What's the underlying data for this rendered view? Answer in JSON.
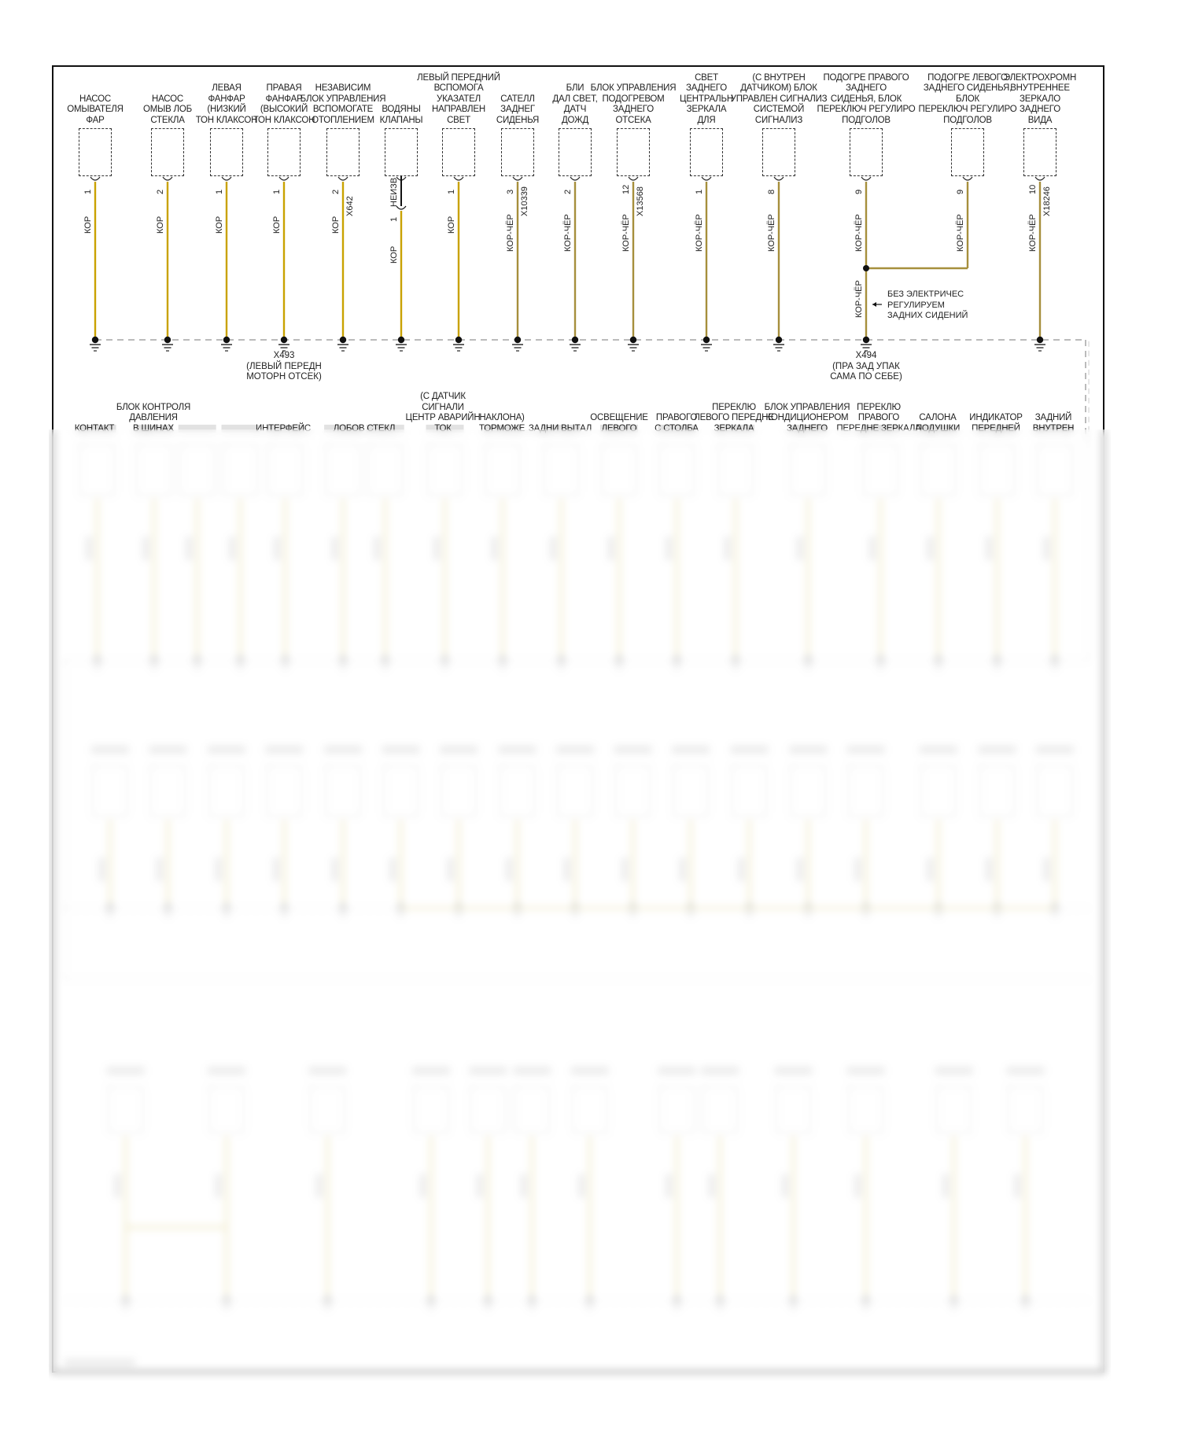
{
  "colors": {
    "kor": "#c9a200",
    "kor_cher": "#a68f3c",
    "frame": "#111111",
    "faded_wire": "#e6dca4"
  },
  "top": {
    "components": [
      {
        "label": [
          "НАСОС",
          "ОМЫВАТЕЛЯ",
          "ФАР"
        ],
        "pin": "1",
        "wire": "КОР",
        "connector": ""
      },
      {
        "label": [
          "НАСОС",
          "ОМЫВ ЛОБ",
          "СТЕКЛА"
        ],
        "pin": "2",
        "wire": "КОР",
        "connector": ""
      },
      {
        "label": [
          "ЛЕВАЯ",
          "ФАНФАР",
          "(НИЗКИЙ",
          "ТОН КЛАКСОН"
        ],
        "pin": "1",
        "wire": "КОР",
        "connector": ""
      },
      {
        "label": [
          "ПРАВАЯ",
          "ФАНФАР",
          "(ВЫСОКИЙ",
          "ТОН КЛАКСОН"
        ],
        "pin": "1",
        "wire": "КОР",
        "connector": ""
      },
      {
        "label": [
          "НЕЗАВИСИМ",
          "БЛОК УПРАВЛЕНИЯ",
          "ВСПОМОГАТЕ",
          "ОТОПЛЕНИЕМ"
        ],
        "pin": "2",
        "wire": "КОР",
        "connector": "X642"
      },
      {
        "label": [
          "ВОДЯНЫ",
          "КЛАПАНЫ"
        ],
        "pin": "1",
        "wire": "КОР",
        "connector": "",
        "unknown": "НЕИЗВ"
      },
      {
        "label": [
          "ЛЕВЫЙ ПЕРЕДНИЙ",
          "ВСПОМОГА",
          "УКАЗАТЕЛ",
          "НАПРАВЛЕН",
          "СВЕТ"
        ],
        "pin": "1",
        "wire": "КОР",
        "connector": ""
      },
      {
        "label": [
          "САТЕЛЛ",
          "ЗАДНЕГ",
          "СИДЕНЬЯ"
        ],
        "pin": "3",
        "wire": "КОР-ЧЁР",
        "connector": "X10339"
      },
      {
        "label": [
          "БЛИ",
          "ДАЛ СВЕТ,",
          "ДАТЧ",
          "ДОЖД"
        ],
        "pin": "2",
        "wire": "КОР-ЧЁР",
        "connector": ""
      },
      {
        "label": [
          "БЛОК УПРАВЛЕНИЯ",
          "ПОДОГРЕВОМ",
          "ЗАДНЕГО",
          "ОТСЕКА"
        ],
        "pin": "12",
        "wire": "КОР-ЧЁР",
        "connector": "X13568"
      },
      {
        "label": [
          "СВЕТ",
          "ЗАДНЕГО",
          "ЦЕНТРАЛЬН",
          "ЗЕРКАЛА",
          "ДЛЯ"
        ],
        "pin": "1",
        "wire": "КОР-ЧЁР",
        "connector": ""
      },
      {
        "label": [
          "(С ВНУТРЕН",
          "ДАТЧИКОМ) БЛОК",
          "УПРАВЛЕН СИГНАЛИЗ",
          "СИСТЕМОЙ",
          "СИГНАЛИЗ"
        ],
        "pin": "8",
        "wire": "КОР-ЧЁР",
        "connector": ""
      },
      {
        "label": [
          "ПОДОГРЕ ПРАВОГО",
          "ЗАДНЕГО",
          "СИДЕНЬЯ, БЛОК",
          "ПЕРЕКЛЮЧ РЕГУЛИРО",
          "ПОДГОЛОВ"
        ],
        "pin": "9",
        "wire": "КОР-ЧЁР",
        "connector": "",
        "wire_below": "КОР-ЧЁР"
      },
      {
        "label": [
          "ПОДОГРЕ ЛЕВОГО",
          "ЗАДНЕГО СИДЕНЬЯ,",
          "БЛОК",
          "ПЕРЕКЛЮЧ РЕГУЛИРО",
          "ПОДГОЛОВ"
        ],
        "pin": "9",
        "wire": "КОР-ЧЁР",
        "connector": ""
      },
      {
        "label": [
          "ЭЛЕКТРОХРОМН",
          "ВНУТРЕННЕЕ",
          "ЗЕРКАЛО",
          "ЗАДНЕГО",
          "ВИДА"
        ],
        "pin": "10",
        "wire": "КОР-ЧЁР",
        "connector": "X18246"
      }
    ],
    "note": [
      "БЕЗ ЭЛЕКТРИЧЕС",
      "РЕГУЛИРУЕМ",
      "ЗАДНИХ СИДЕНИЙ"
    ],
    "grounds": [
      {
        "lines": [
          "X493",
          "(ЛЕВЫЙ ПЕРЕДН",
          "МОТОРН ОТСЕК)"
        ]
      },
      {
        "lines": [
          "X494",
          "(ПРА ЗАД УПАК",
          "САМА ПО СЕБЕ)"
        ]
      }
    ]
  },
  "second_row": {
    "labels": [
      [
        "КОНТАКТ"
      ],
      [
        "БЛОК КОНТРОЛЯ",
        "ДАВЛЕНИЯ",
        "В ШИНАХ"
      ],
      [
        "ИНТЕРФЕЙС"
      ],
      [
        "ЛОБОВ СТЕКЛ"
      ],
      [
        "(С ДАТЧИК",
        "СИГНАЛИ",
        "ЦЕНТР АВАРИЙН",
        "ТОК"
      ],
      [
        "НАКЛОНА)",
        "ТОРМОЖЕ"
      ],
      [
        "ЗАДНИ ВЫТАЛ"
      ],
      [
        "ОСВЕЩЕНИЕ",
        "ЛЕВОГО"
      ],
      [
        "ПРАВОГО",
        "С СТОЛБА"
      ],
      [
        "ПЕРЕКЛЮ",
        "ЛЕВОГО ПЕРЕДНЕ",
        "ЗЕРКАЛА"
      ],
      [
        "БЛОК УПРАВЛЕНИЯ",
        "КОНДИЦИОНЕРОМ",
        "ЗАДНЕГО"
      ],
      [
        "ПЕРЕКЛЮ",
        "ПРАВОГО",
        "ПЕРЕДНЕ ЗЕРКАЛА"
      ],
      [
        "САЛОНА",
        "ПОДУШКИ"
      ],
      [
        "ИНДИКАТОР",
        "ПЕРЕДНЕЙ"
      ],
      [
        "ЗАДНИЙ",
        "ВНУТРЕН"
      ]
    ]
  }
}
